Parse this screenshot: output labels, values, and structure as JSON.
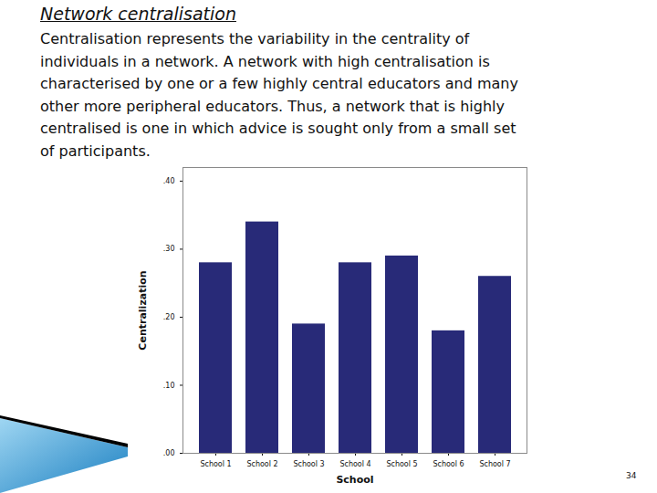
{
  "heading": "Network centralisation",
  "paragraph_lines": [
    "Centralisation represents the variability in the centrality of",
    "individuals in a network. A network with high centralisation is",
    "characterised by one or a few highly central educators and many",
    "other more peripheral educators. Thus, a network that is highly",
    "centralised is one in which advice is sought only from a small set",
    "of participants."
  ],
  "page_number": "34",
  "chart_data": {
    "type": "bar",
    "x_label": "School",
    "y_label": "Centralization",
    "categories": [
      "School 1",
      "School 2",
      "School 3",
      "School 4",
      "School 5",
      "School 6",
      "School 7"
    ],
    "values": [
      0.28,
      0.34,
      0.19,
      0.28,
      0.29,
      0.18,
      0.26
    ],
    "color": "#282a78",
    "ylim": [
      0,
      0.42
    ],
    "yticks": [
      {
        "value": 0,
        "label": ".00"
      },
      {
        "value": 0.1,
        "label": ".10"
      },
      {
        "value": 0.2,
        "label": ".20"
      },
      {
        "value": 0.3,
        "label": ".30"
      },
      {
        "value": 0.4,
        "label": ".40"
      }
    ],
    "grid": false
  }
}
